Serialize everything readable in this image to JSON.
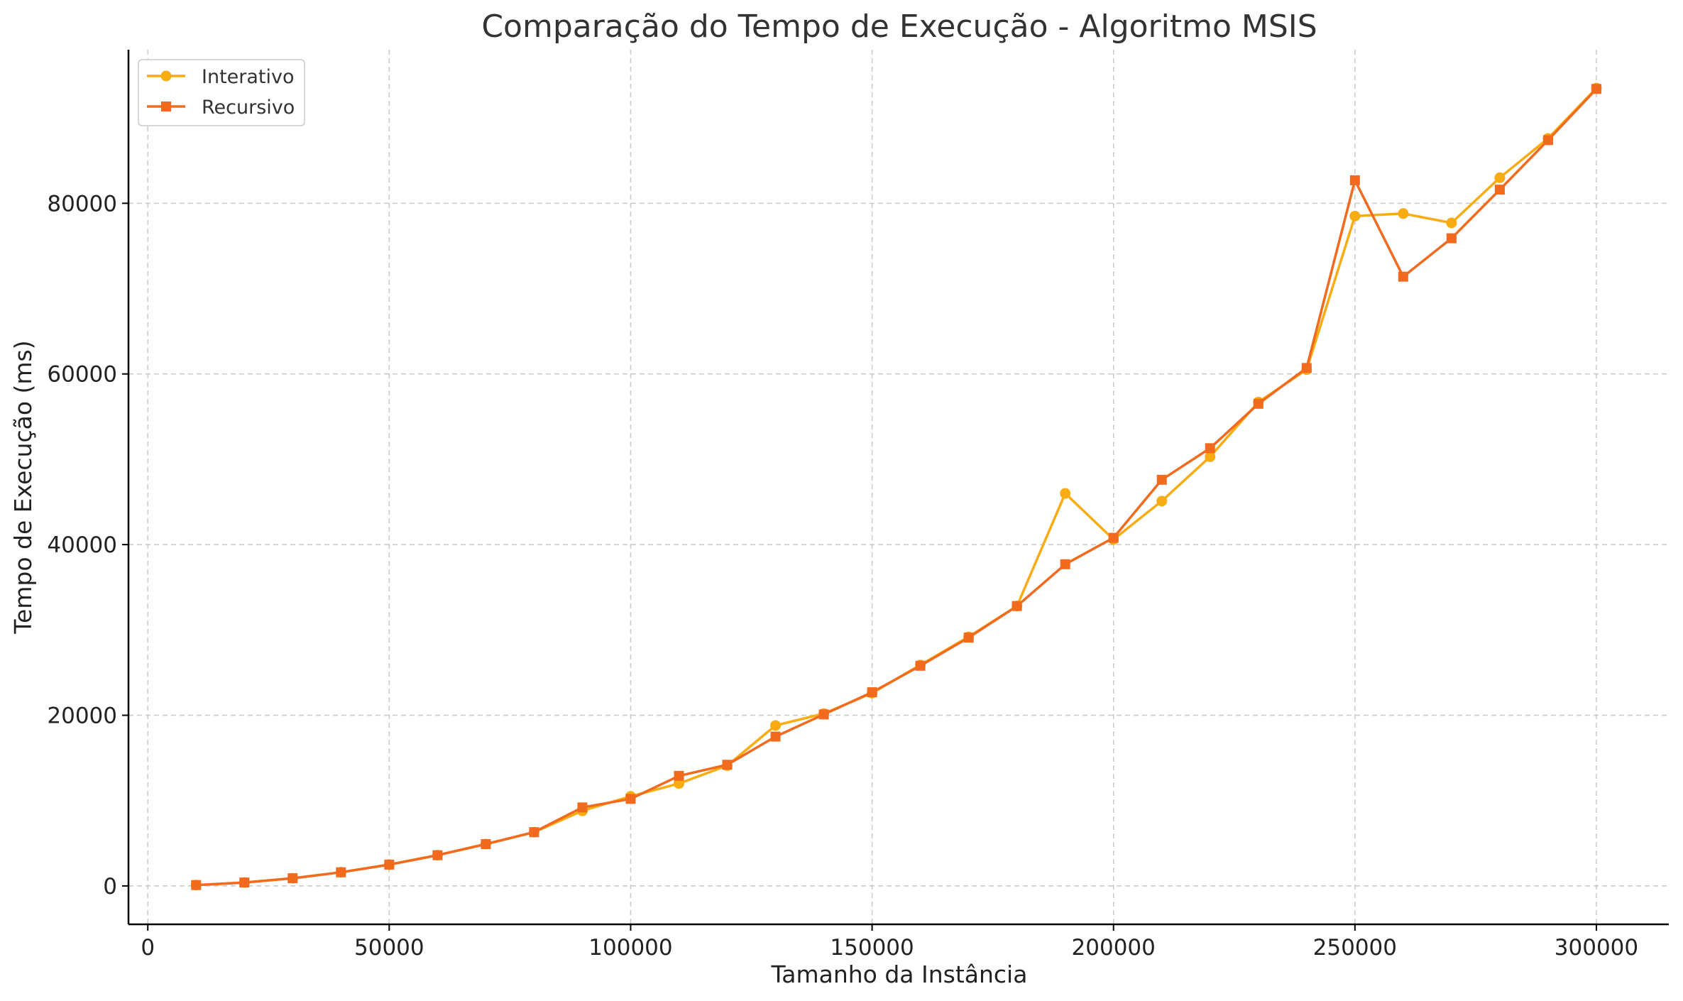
{
  "chart_data": {
    "type": "line",
    "title": "Comparação do Tempo de Execução - Algoritmo MSIS",
    "xlabel": "Tamanho da Instância",
    "ylabel": "Tempo de Execução (ms)",
    "xlim": [
      -4000,
      315000
    ],
    "ylim": [
      -4500,
      98000
    ],
    "xticks": [
      0,
      50000,
      100000,
      150000,
      200000,
      250000,
      300000
    ],
    "xtick_labels": [
      "0",
      "50000",
      "100000",
      "150000",
      "200000",
      "250000",
      "300000"
    ],
    "yticks": [
      0,
      20000,
      40000,
      60000,
      80000
    ],
    "ytick_labels": [
      "0",
      "20000",
      "40000",
      "60000",
      "80000"
    ],
    "grid": true,
    "legend_position": "top-left",
    "x": [
      10000,
      20000,
      30000,
      40000,
      50000,
      60000,
      70000,
      80000,
      90000,
      100000,
      110000,
      120000,
      130000,
      140000,
      150000,
      160000,
      170000,
      180000,
      190000,
      200000,
      210000,
      220000,
      230000,
      240000,
      250000,
      260000,
      270000,
      280000,
      290000,
      300000
    ],
    "series": [
      {
        "name": "Interativo",
        "color": "#f8ac12",
        "marker": "circle",
        "values": [
          100,
          400,
          900,
          1600,
          2500,
          3600,
          4900,
          6300,
          8800,
          10500,
          12000,
          14100,
          18800,
          20200,
          22600,
          25900,
          29200,
          32800,
          46000,
          40600,
          45100,
          50300,
          56700,
          60500,
          78500,
          78800,
          77700,
          83000,
          87600,
          93500
        ]
      },
      {
        "name": "Recursivo",
        "color": "#f26a1e",
        "marker": "square",
        "values": [
          100,
          400,
          900,
          1600,
          2500,
          3600,
          4900,
          6300,
          9200,
          10200,
          12900,
          14200,
          17500,
          20100,
          22700,
          25800,
          29100,
          32800,
          37700,
          40800,
          47600,
          51300,
          56500,
          60700,
          82700,
          71400,
          75900,
          81600,
          87400,
          93400
        ]
      }
    ]
  }
}
